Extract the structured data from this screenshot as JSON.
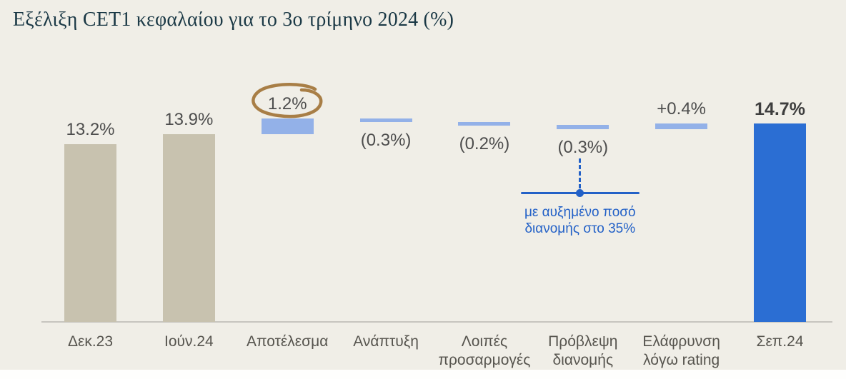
{
  "chart_data": {
    "type": "bar",
    "subtype": "waterfall",
    "title": "Εξέλιξη CET1 κεφαλαίου για το 3ο τρίμηνο 2024 (%)",
    "unit": "%",
    "ylim": [
      0,
      16
    ],
    "grid": false,
    "legend": false,
    "categories": [
      "Δεκ.23",
      "Ιούν.24",
      "Αποτέλεσμα",
      "Ανάπτυξη",
      "Λοιπές προσαρμογές",
      "Πρόβλεψη διανομής",
      "Ελάφρυνση λόγω rating",
      "Σεπ.24"
    ],
    "values": [
      13.2,
      13.9,
      1.2,
      -0.3,
      -0.2,
      -0.3,
      0.4,
      14.7
    ],
    "columns": [
      {
        "id": "dec23",
        "label_lines": [
          "Δεκ.23"
        ],
        "role": "total",
        "value": 13.2,
        "display": "13.2%",
        "color_key": "beige",
        "label_position": "above"
      },
      {
        "id": "jun24",
        "label_lines": [
          "Ιούν.24"
        ],
        "role": "total",
        "value": 13.9,
        "display": "13.9%",
        "color_key": "beige",
        "label_position": "above"
      },
      {
        "id": "result",
        "label_lines": [
          "Αποτέλεσμα"
        ],
        "role": "delta",
        "value": 1.2,
        "display": "1.2%",
        "color_key": "lightblue",
        "label_position": "above",
        "circled": true
      },
      {
        "id": "growth",
        "label_lines": [
          "Ανάπτυξη"
        ],
        "role": "delta",
        "value": -0.3,
        "display": "(0.3%)",
        "color_key": "lightblue",
        "label_position": "below"
      },
      {
        "id": "other-adjustments",
        "label_lines": [
          "Λοιπές",
          "προσαρμογές"
        ],
        "role": "delta",
        "value": -0.2,
        "display": "(0.2%)",
        "color_key": "lightblue",
        "label_position": "below"
      },
      {
        "id": "dividend-provision",
        "label_lines": [
          "Πρόβλεψη",
          "διανομής"
        ],
        "role": "delta",
        "value": -0.3,
        "display": "(0.3%)",
        "color_key": "lightblue",
        "label_position": "below",
        "callout": true
      },
      {
        "id": "rating-relief",
        "label_lines": [
          "Ελάφρυνση",
          "λόγω rating"
        ],
        "role": "delta",
        "value": 0.4,
        "display": "+0.4%",
        "color_key": "lightblue",
        "label_position": "above"
      },
      {
        "id": "sep24",
        "label_lines": [
          "Σεπ.24"
        ],
        "role": "total",
        "value": 14.7,
        "display": "14.7%",
        "color_key": "blue",
        "label_position": "above",
        "bold_label": true
      }
    ],
    "annotations": {
      "circled_value": "1.2%",
      "circle_color": "#A87E46",
      "dividend_note_lines": [
        "με αυξημένο ποσό",
        "διανομής στο 35%"
      ],
      "dividend_note_color": "#2361C7"
    },
    "colors": {
      "beige": "#C8C2AF",
      "lightblue": "#93B1E8",
      "blue": "#2B6ED3",
      "background": "#F0EEE7",
      "value_label": "#4D4D4D",
      "axis_label": "#56544E",
      "axis_line": "#C7C5BF",
      "title": "#1B3946"
    }
  }
}
